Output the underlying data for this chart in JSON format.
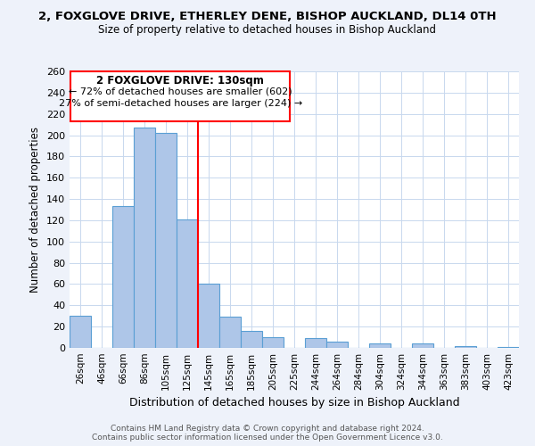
{
  "title": "2, FOXGLOVE DRIVE, ETHERLEY DENE, BISHOP AUCKLAND, DL14 0TH",
  "subtitle": "Size of property relative to detached houses in Bishop Auckland",
  "xlabel": "Distribution of detached houses by size in Bishop Auckland",
  "ylabel": "Number of detached properties",
  "bar_labels": [
    "26sqm",
    "46sqm",
    "66sqm",
    "86sqm",
    "105sqm",
    "125sqm",
    "145sqm",
    "165sqm",
    "185sqm",
    "205sqm",
    "225sqm",
    "244sqm",
    "264sqm",
    "284sqm",
    "304sqm",
    "324sqm",
    "344sqm",
    "363sqm",
    "383sqm",
    "403sqm",
    "423sqm"
  ],
  "bar_values": [
    30,
    0,
    133,
    207,
    202,
    121,
    60,
    29,
    16,
    10,
    0,
    9,
    6,
    0,
    4,
    0,
    4,
    0,
    2,
    0,
    1
  ],
  "bar_color": "#aec6e8",
  "bar_edge_color": "#5a9fd4",
  "vline_x": 5.5,
  "vline_color": "red",
  "ylim": [
    0,
    260
  ],
  "yticks": [
    0,
    20,
    40,
    60,
    80,
    100,
    120,
    140,
    160,
    180,
    200,
    220,
    240,
    260
  ],
  "annotation_title": "2 FOXGLOVE DRIVE: 130sqm",
  "annotation_line1": "← 72% of detached houses are smaller (602)",
  "annotation_line2": "27% of semi-detached houses are larger (224) →",
  "footer1": "Contains HM Land Registry data © Crown copyright and database right 2024.",
  "footer2": "Contains public sector information licensed under the Open Government Licence v3.0.",
  "bg_color": "#eef2fa",
  "plot_bg_color": "#ffffff"
}
